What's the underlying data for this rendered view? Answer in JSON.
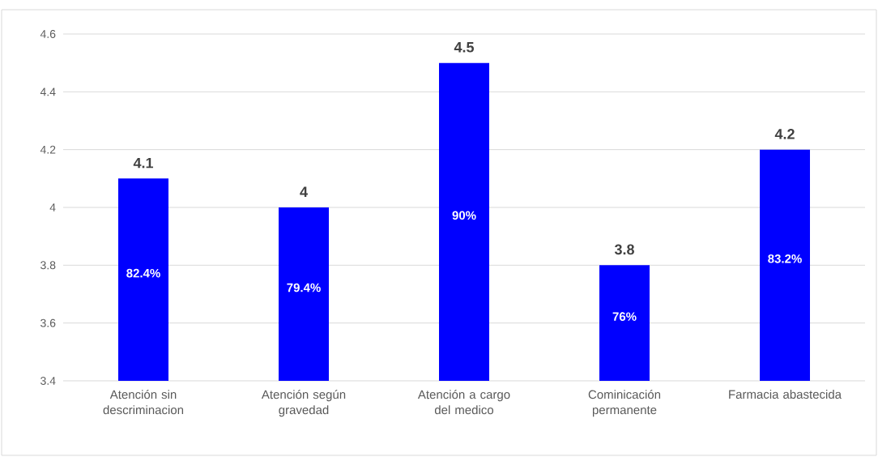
{
  "chart_data": {
    "type": "bar",
    "categories": [
      "Atención sin descriminacion",
      "Atención según gravedad",
      "Atención a cargo del medico",
      "Cominicación permanente",
      "Farmacia abastecida"
    ],
    "values": [
      4.1,
      4,
      4.5,
      3.8,
      4.2
    ],
    "color": "#0000ff",
    "ylim": [
      3.4,
      4.6
    ],
    "yticks": [
      3.4,
      3.6,
      3.8,
      4,
      4.2,
      4.4,
      4.6
    ],
    "grid": "y",
    "data_labels": true,
    "annotations": [
      "82.4%",
      "79.4%",
      "90%",
      "76%",
      "83.2%"
    ]
  }
}
